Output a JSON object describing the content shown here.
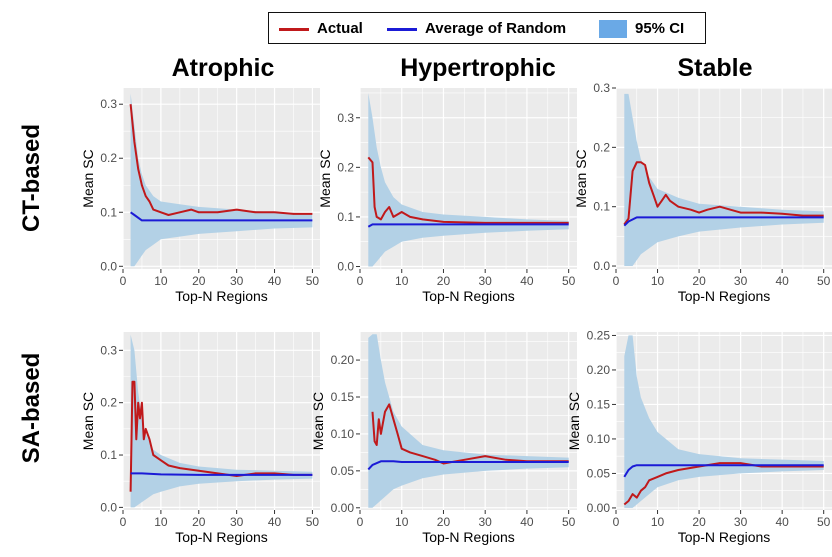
{
  "legend": {
    "actual": {
      "label": "Actual",
      "color": "#c0191b"
    },
    "random": {
      "label": "Average of Random",
      "color": "#1b1bd6"
    },
    "ci": {
      "label": "95% CI",
      "color": "#6aa9e6"
    }
  },
  "columns": [
    "Atrophic",
    "Hypertrophic",
    "Stable"
  ],
  "rows": [
    "CT-based",
    "SA-based"
  ],
  "colors": {
    "panel": "#ebebeb",
    "grid": "#ffffff",
    "band": "#b3d1e6",
    "actual": "#c0191b",
    "random": "#1b1bd6"
  },
  "chart_data": [
    {
      "type": "line",
      "row": "CT-based",
      "column": "Atrophic",
      "xlabel": "Top-N Regions",
      "ylabel": "Mean SC",
      "xlim": [
        0,
        52
      ],
      "ylim": [
        -0.005,
        0.33
      ],
      "xticks": [
        0,
        10,
        20,
        30,
        40,
        50
      ],
      "yticks": [
        0.0,
        0.1,
        0.2,
        0.3
      ],
      "ytick_labels": [
        "0.0",
        "0.1",
        "0.2",
        "0.3"
      ],
      "series": [
        {
          "name": "Actual",
          "x": [
            2,
            3,
            4,
            5,
            6,
            7,
            8,
            10,
            12,
            15,
            18,
            20,
            25,
            30,
            35,
            40,
            45,
            50
          ],
          "values": [
            0.3,
            0.23,
            0.18,
            0.15,
            0.13,
            0.12,
            0.105,
            0.1,
            0.095,
            0.1,
            0.105,
            0.1,
            0.1,
            0.105,
            0.1,
            0.1,
            0.097,
            0.097
          ]
        },
        {
          "name": "Average of Random",
          "x": [
            2,
            3,
            5,
            7,
            10,
            20,
            30,
            40,
            50
          ],
          "values": [
            0.1,
            0.095,
            0.085,
            0.085,
            0.085,
            0.085,
            0.085,
            0.085,
            0.085
          ]
        }
      ],
      "band": {
        "name": "95% CI",
        "x": [
          2,
          3,
          4,
          5,
          6,
          8,
          10,
          15,
          20,
          30,
          40,
          50
        ],
        "upper": [
          0.32,
          0.26,
          0.2,
          0.17,
          0.15,
          0.13,
          0.12,
          0.115,
          0.11,
          0.105,
          0.1,
          0.098
        ],
        "lower": [
          0.0,
          0.0,
          0.01,
          0.02,
          0.03,
          0.04,
          0.05,
          0.055,
          0.06,
          0.065,
          0.07,
          0.072
        ]
      }
    },
    {
      "type": "line",
      "row": "CT-based",
      "column": "Hypertrophic",
      "xlabel": "Top-N Regions",
      "ylabel": "Mean SC",
      "xlim": [
        0,
        52
      ],
      "ylim": [
        -0.005,
        0.36
      ],
      "xticks": [
        0,
        10,
        20,
        30,
        40,
        50
      ],
      "yticks": [
        0.0,
        0.1,
        0.2,
        0.3
      ],
      "ytick_labels": [
        "0.0",
        "0.1",
        "0.2",
        "0.3"
      ],
      "series": [
        {
          "name": "Actual",
          "x": [
            2,
            3,
            3.5,
            4,
            5,
            6,
            7,
            8,
            10,
            12,
            15,
            20,
            30,
            40,
            50
          ],
          "values": [
            0.22,
            0.21,
            0.12,
            0.1,
            0.095,
            0.11,
            0.12,
            0.1,
            0.11,
            0.1,
            0.095,
            0.09,
            0.088,
            0.088,
            0.088
          ]
        },
        {
          "name": "Average of Random",
          "x": [
            2,
            3,
            5,
            10,
            20,
            30,
            40,
            50
          ],
          "values": [
            0.08,
            0.085,
            0.085,
            0.085,
            0.085,
            0.085,
            0.085,
            0.085
          ]
        }
      ],
      "band": {
        "name": "95% CI",
        "x": [
          2,
          3,
          4,
          5,
          6,
          8,
          10,
          15,
          20,
          30,
          40,
          50
        ],
        "upper": [
          0.35,
          0.3,
          0.24,
          0.2,
          0.17,
          0.14,
          0.125,
          0.11,
          0.105,
          0.1,
          0.095,
          0.092
        ],
        "lower": [
          0.0,
          0.0,
          0.01,
          0.02,
          0.03,
          0.04,
          0.05,
          0.058,
          0.062,
          0.068,
          0.072,
          0.075
        ]
      }
    },
    {
      "type": "line",
      "row": "CT-based",
      "column": "Stable",
      "xlabel": "Top-N Regions",
      "ylabel": "Mean SC",
      "xlim": [
        0,
        52
      ],
      "ylim": [
        -0.005,
        0.3
      ],
      "xticks": [
        0,
        10,
        20,
        30,
        40,
        50
      ],
      "yticks": [
        0.0,
        0.1,
        0.2,
        0.3
      ],
      "ytick_labels": [
        "0.0",
        "0.1",
        "0.2",
        "0.3"
      ],
      "series": [
        {
          "name": "Actual",
          "x": [
            2,
            3,
            4,
            5,
            6,
            7,
            8,
            9,
            10,
            11,
            12,
            13,
            15,
            18,
            20,
            22,
            25,
            30,
            35,
            40,
            45,
            50
          ],
          "values": [
            0.07,
            0.08,
            0.16,
            0.175,
            0.175,
            0.17,
            0.14,
            0.12,
            0.1,
            0.11,
            0.12,
            0.11,
            0.1,
            0.095,
            0.09,
            0.095,
            0.1,
            0.09,
            0.09,
            0.088,
            0.085,
            0.085
          ]
        },
        {
          "name": "Average of Random",
          "x": [
            2,
            3,
            5,
            7,
            10,
            20,
            30,
            40,
            50
          ],
          "values": [
            0.068,
            0.075,
            0.082,
            0.082,
            0.082,
            0.082,
            0.082,
            0.082,
            0.082
          ]
        }
      ],
      "band": {
        "name": "95% CI",
        "x": [
          2,
          3,
          4,
          5,
          6,
          8,
          10,
          15,
          20,
          30,
          40,
          50
        ],
        "upper": [
          0.29,
          0.29,
          0.25,
          0.21,
          0.18,
          0.15,
          0.13,
          0.115,
          0.105,
          0.1,
          0.095,
          0.092
        ],
        "lower": [
          0.0,
          0.0,
          0.0,
          0.01,
          0.02,
          0.03,
          0.04,
          0.05,
          0.058,
          0.065,
          0.07,
          0.073
        ]
      }
    },
    {
      "type": "line",
      "row": "SA-based",
      "column": "Atrophic",
      "xlabel": "Top-N Regions",
      "ylabel": "Mean SC",
      "xlim": [
        0,
        52
      ],
      "ylim": [
        -0.005,
        0.335
      ],
      "xticks": [
        0,
        10,
        20,
        30,
        40,
        50
      ],
      "yticks": [
        0.0,
        0.1,
        0.2,
        0.3
      ],
      "ytick_labels": [
        "0.0",
        "0.1",
        "0.2",
        "0.3"
      ],
      "series": [
        {
          "name": "Actual",
          "x": [
            2,
            2.5,
            3,
            3.5,
            4,
            4.5,
            5,
            5.5,
            6,
            7,
            8,
            10,
            12,
            15,
            20,
            25,
            30,
            35,
            40,
            45,
            50
          ],
          "values": [
            0.03,
            0.24,
            0.24,
            0.13,
            0.2,
            0.17,
            0.2,
            0.13,
            0.15,
            0.13,
            0.1,
            0.09,
            0.08,
            0.075,
            0.07,
            0.065,
            0.06,
            0.065,
            0.065,
            0.062,
            0.062
          ]
        },
        {
          "name": "Average of Random",
          "x": [
            2,
            3,
            5,
            10,
            20,
            30,
            40,
            50
          ],
          "values": [
            0.065,
            0.065,
            0.065,
            0.063,
            0.062,
            0.062,
            0.062,
            0.062
          ]
        }
      ],
      "band": {
        "name": "95% CI",
        "x": [
          2,
          3,
          4,
          5,
          6,
          8,
          10,
          15,
          20,
          30,
          40,
          50
        ],
        "upper": [
          0.33,
          0.3,
          0.22,
          0.17,
          0.14,
          0.11,
          0.1,
          0.085,
          0.078,
          0.072,
          0.07,
          0.068
        ],
        "lower": [
          0.0,
          0.0,
          0.005,
          0.01,
          0.015,
          0.025,
          0.03,
          0.04,
          0.045,
          0.05,
          0.053,
          0.055
        ]
      }
    },
    {
      "type": "line",
      "row": "SA-based",
      "column": "Hypertrophic",
      "xlabel": "Top-N Regions",
      "ylabel": "Mean SC",
      "xlim": [
        0,
        52
      ],
      "ylim": [
        -0.003,
        0.238
      ],
      "xticks": [
        0,
        10,
        20,
        30,
        40,
        50
      ],
      "yticks": [
        0.0,
        0.05,
        0.1,
        0.15,
        0.2
      ],
      "ytick_labels": [
        "0.00",
        "0.05",
        "0.10",
        "0.15",
        "0.20"
      ],
      "series": [
        {
          "name": "Actual",
          "x": [
            3,
            3.5,
            4,
            4.5,
            5,
            6,
            7,
            8,
            9,
            10,
            12,
            15,
            18,
            20,
            25,
            30,
            35,
            40,
            45,
            50
          ],
          "values": [
            0.13,
            0.09,
            0.085,
            0.12,
            0.1,
            0.13,
            0.14,
            0.12,
            0.1,
            0.08,
            0.075,
            0.07,
            0.065,
            0.06,
            0.065,
            0.07,
            0.065,
            0.063,
            0.063,
            0.063
          ]
        },
        {
          "name": "Average of Random",
          "x": [
            2,
            3,
            5,
            8,
            10,
            20,
            30,
            40,
            50
          ],
          "values": [
            0.052,
            0.058,
            0.063,
            0.063,
            0.062,
            0.062,
            0.062,
            0.062,
            0.062
          ]
        }
      ],
      "band": {
        "name": "95% CI",
        "x": [
          2,
          3,
          4,
          5,
          6,
          8,
          10,
          15,
          20,
          30,
          40,
          50
        ],
        "upper": [
          0.23,
          0.235,
          0.235,
          0.2,
          0.17,
          0.13,
          0.11,
          0.085,
          0.078,
          0.072,
          0.07,
          0.068
        ],
        "lower": [
          0.0,
          0.0,
          0.005,
          0.01,
          0.015,
          0.025,
          0.03,
          0.04,
          0.045,
          0.05,
          0.053,
          0.055
        ]
      }
    },
    {
      "type": "line",
      "row": "SA-based",
      "column": "Stable",
      "xlabel": "Top-N Regions",
      "ylabel": "Mean SC",
      "xlim": [
        0,
        52
      ],
      "ylim": [
        -0.003,
        0.255
      ],
      "xticks": [
        0,
        10,
        20,
        30,
        40,
        50
      ],
      "yticks": [
        0.0,
        0.05,
        0.1,
        0.15,
        0.2,
        0.25
      ],
      "ytick_labels": [
        "0.00",
        "0.05",
        "0.10",
        "0.15",
        "0.20",
        "0.25"
      ],
      "series": [
        {
          "name": "Actual",
          "x": [
            2,
            3,
            4,
            5,
            6,
            7,
            8,
            10,
            12,
            15,
            20,
            25,
            30,
            35,
            40,
            45,
            50
          ],
          "values": [
            0.005,
            0.01,
            0.02,
            0.015,
            0.025,
            0.03,
            0.04,
            0.045,
            0.05,
            0.055,
            0.06,
            0.065,
            0.065,
            0.06,
            0.06,
            0.06,
            0.06
          ]
        },
        {
          "name": "Average of Random",
          "x": [
            2,
            3,
            4,
            5,
            10,
            20,
            30,
            40,
            50
          ],
          "values": [
            0.045,
            0.055,
            0.06,
            0.062,
            0.062,
            0.062,
            0.062,
            0.062,
            0.062
          ]
        }
      ],
      "band": {
        "name": "95% CI",
        "x": [
          2,
          3,
          4,
          5,
          6,
          8,
          10,
          15,
          20,
          30,
          40,
          50
        ],
        "upper": [
          0.22,
          0.25,
          0.25,
          0.19,
          0.16,
          0.13,
          0.11,
          0.085,
          0.078,
          0.072,
          0.07,
          0.068
        ],
        "lower": [
          0.0,
          0.0,
          0.0,
          0.005,
          0.01,
          0.02,
          0.03,
          0.04,
          0.045,
          0.05,
          0.053,
          0.055
        ]
      }
    }
  ]
}
